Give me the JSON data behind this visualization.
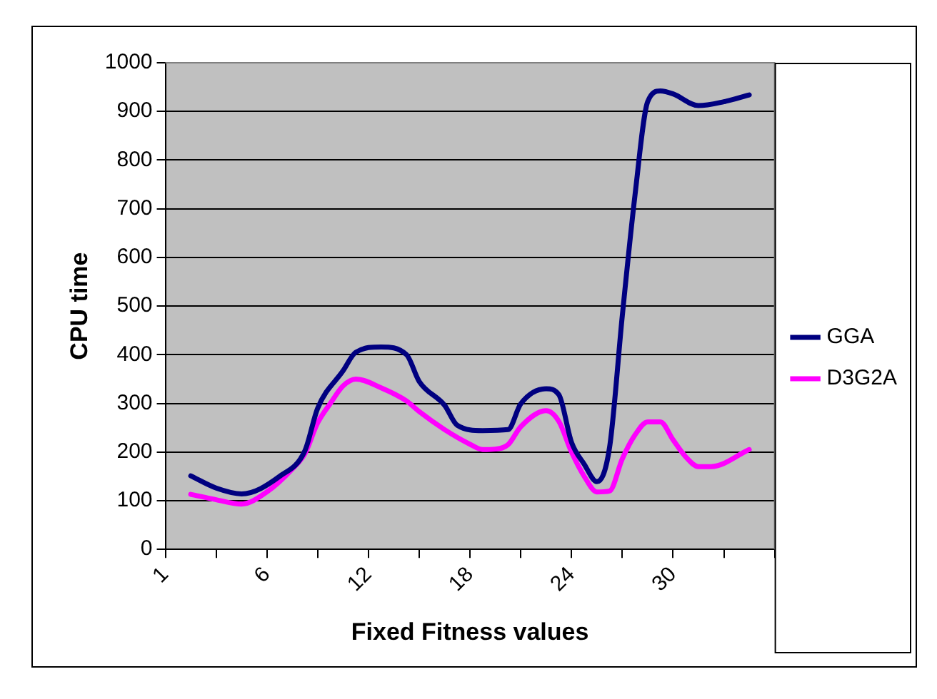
{
  "chart_data": {
    "type": "line",
    "xlabel": "Fixed Fitness values",
    "ylabel": "CPU time",
    "categories": [
      "1",
      null,
      null,
      null,
      null,
      null,
      null,
      null,
      "6",
      null,
      null,
      null,
      null,
      null,
      null,
      null,
      "12",
      null,
      null,
      null,
      null,
      null,
      null,
      null,
      "18",
      null,
      null,
      null,
      null,
      null,
      null,
      null,
      "24",
      null,
      null,
      null,
      null,
      null,
      null,
      null,
      "30",
      null,
      null,
      null,
      null,
      null,
      null,
      null,
      null
    ],
    "series": [
      {
        "name": "GGA",
        "color": "#000080",
        "values": [
          null,
          null,
          151,
          null,
          126,
          null,
          114,
          null,
          null,
          150,
          null,
          203,
          290,
          null,
          367,
          405,
          null,
          416,
          null,
          400,
          345,
          null,
          296,
          255,
          null,
          244,
          null,
          246,
          299,
          null,
          330,
          318,
          220,
          175,
          139,
          210,
          480,
          728,
          920,
          942,
          936,
          null,
          912,
          null,
          920,
          null,
          934,
          null,
          null
        ]
      },
      {
        "name": "D3G2A",
        "color": "#ff00ff",
        "values": [
          null,
          null,
          113,
          null,
          102,
          null,
          93,
          null,
          118,
          null,
          165,
          197,
          260,
          300,
          336,
          350,
          null,
          332,
          null,
          305,
          283,
          null,
          246,
          null,
          216,
          205,
          206,
          215,
          252,
          null,
          285,
          263,
          200,
          150,
          118,
          120,
          186,
          235,
          262,
          262,
          225,
          190,
          170,
          170,
          null,
          null,
          205,
          null,
          null
        ]
      }
    ],
    "ylim": [
      0,
      1000
    ],
    "yticks": [
      0,
      100,
      200,
      300,
      400,
      500,
      600,
      700,
      800,
      900,
      1000
    ],
    "grid": "y",
    "legend": "right",
    "marker": "none",
    "line_style": "solid"
  }
}
